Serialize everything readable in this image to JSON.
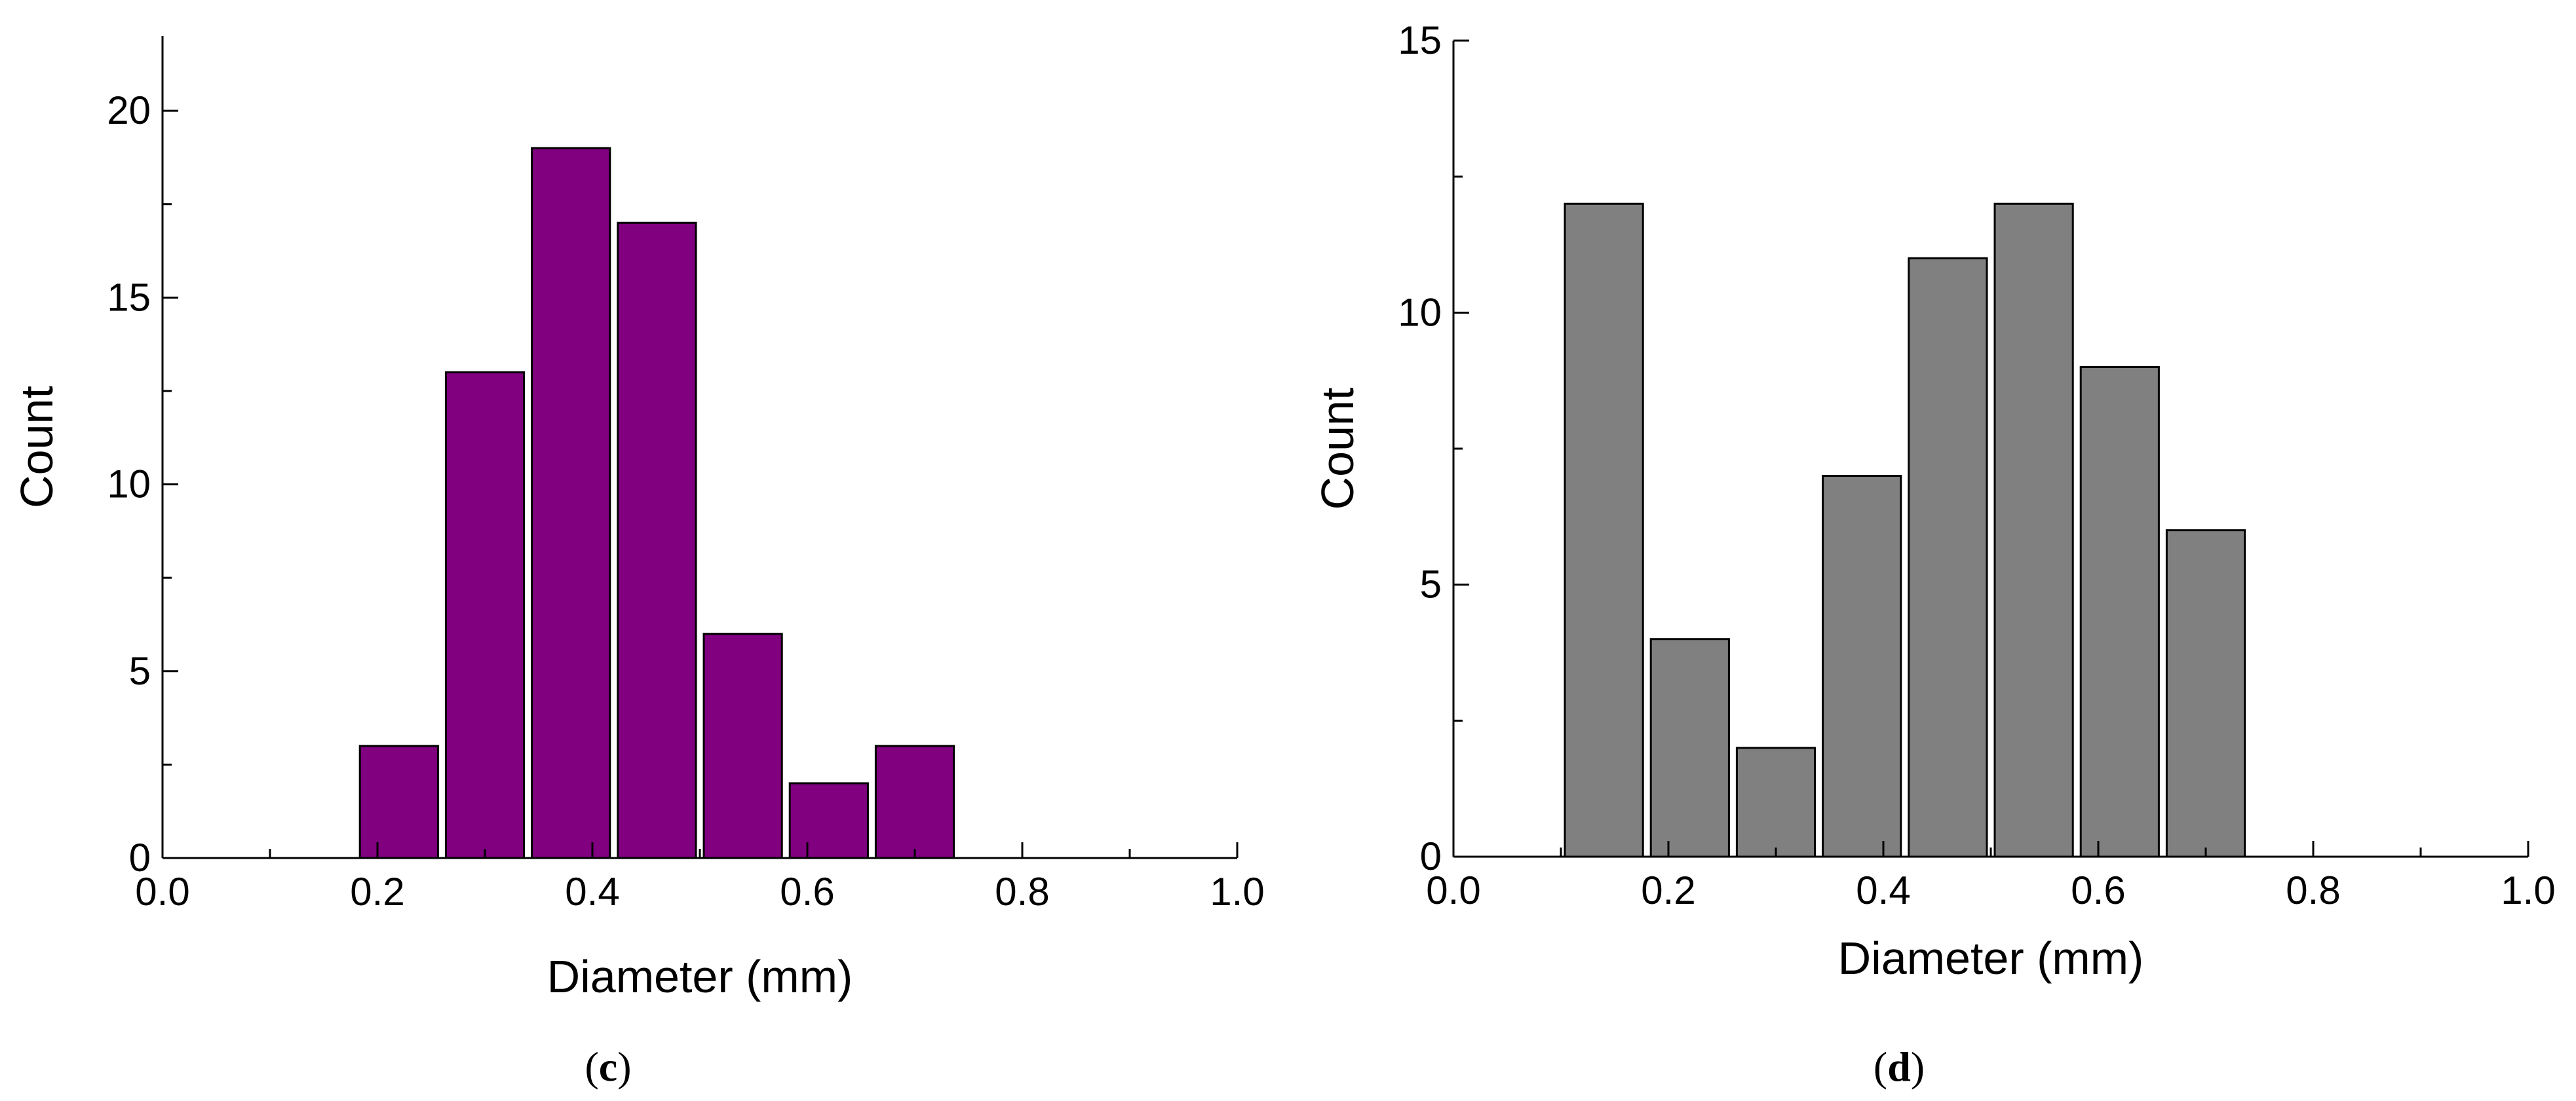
{
  "chart_data": [
    {
      "type": "bar",
      "panel_label": "c",
      "xlabel": "Diameter (mm)",
      "ylabel": "Count",
      "xlim": [
        0.0,
        1.0
      ],
      "ylim": [
        0,
        22
      ],
      "x_ticks": [
        "0.0",
        "0.2",
        "0.4",
        "0.6",
        "0.8",
        "1.0"
      ],
      "y_ticks": [
        "0",
        "5",
        "10",
        "15",
        "20"
      ],
      "bin_width": 0.08,
      "bins": [
        {
          "x_start": 0.18,
          "x_end": 0.26,
          "value": 3
        },
        {
          "x_start": 0.26,
          "x_end": 0.34,
          "value": 13
        },
        {
          "x_start": 0.34,
          "x_end": 0.42,
          "value": 19
        },
        {
          "x_start": 0.42,
          "x_end": 0.5,
          "value": 17
        },
        {
          "x_start": 0.5,
          "x_end": 0.58,
          "value": 6
        },
        {
          "x_start": 0.58,
          "x_end": 0.66,
          "value": 2
        },
        {
          "x_start": 0.66,
          "x_end": 0.74,
          "value": 3
        }
      ],
      "bar_color": "#800080",
      "grid": false
    },
    {
      "type": "bar",
      "panel_label": "d",
      "xlabel": "Diameter (mm)",
      "ylabel": "Count",
      "xlim": [
        0.0,
        1.0
      ],
      "ylim": [
        0,
        15
      ],
      "x_ticks": [
        "0.0",
        "0.2",
        "0.4",
        "0.6",
        "0.8",
        "1.0"
      ],
      "y_ticks": [
        "0",
        "5",
        "10",
        "15"
      ],
      "bin_width": 0.08,
      "bins": [
        {
          "x_start": 0.1,
          "x_end": 0.18,
          "value": 12
        },
        {
          "x_start": 0.18,
          "x_end": 0.26,
          "value": 4
        },
        {
          "x_start": 0.26,
          "x_end": 0.34,
          "value": 2
        },
        {
          "x_start": 0.34,
          "x_end": 0.42,
          "value": 7
        },
        {
          "x_start": 0.42,
          "x_end": 0.5,
          "value": 11
        },
        {
          "x_start": 0.5,
          "x_end": 0.58,
          "value": 12
        },
        {
          "x_start": 0.58,
          "x_end": 0.66,
          "value": 9
        },
        {
          "x_start": 0.66,
          "x_end": 0.74,
          "value": 6
        }
      ],
      "bar_color": "#808080",
      "grid": false
    }
  ]
}
